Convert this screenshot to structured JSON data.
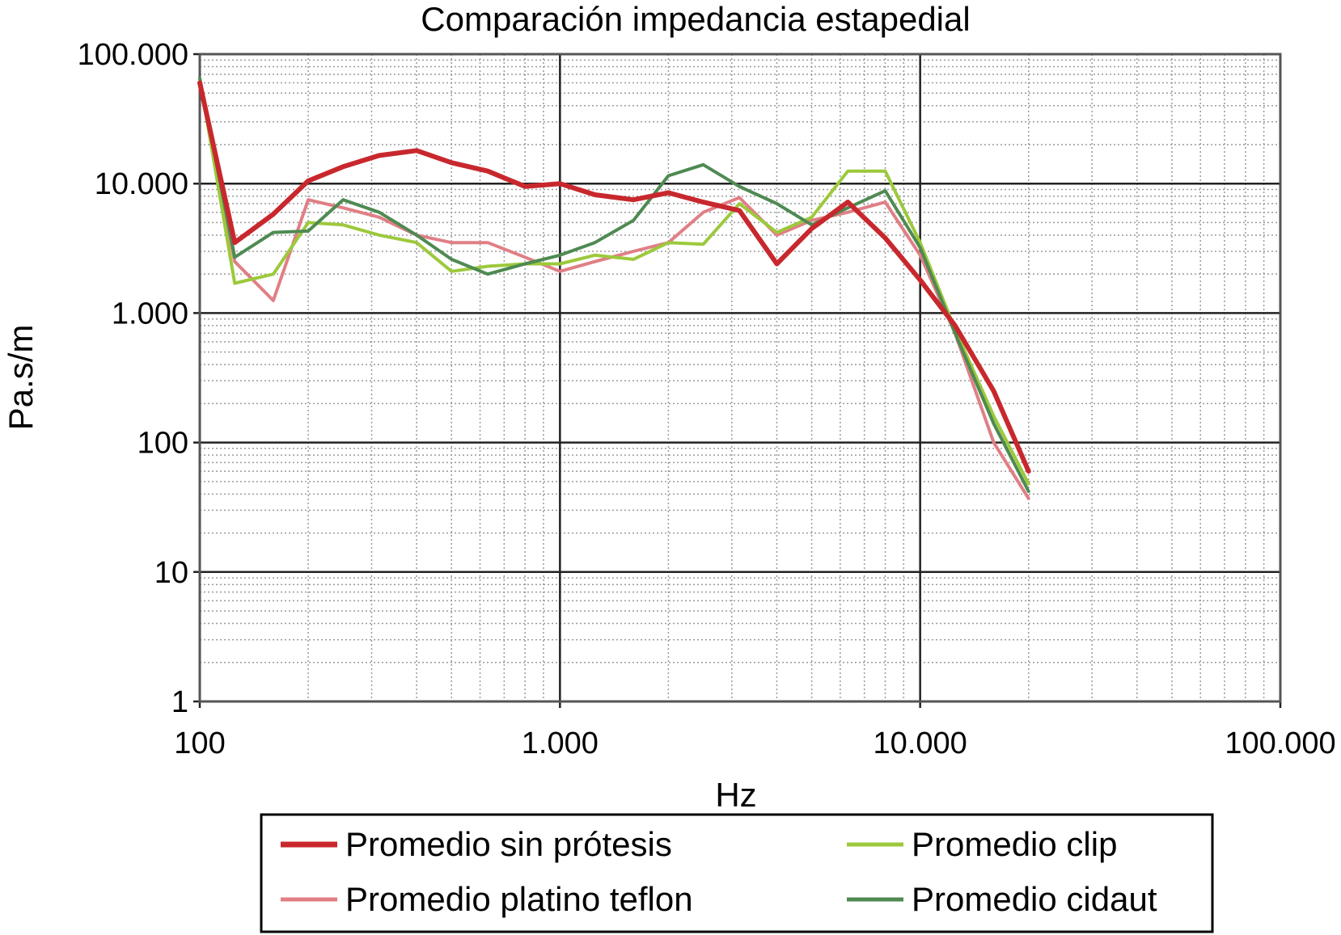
{
  "chart_data": {
    "type": "line",
    "title": "Comparación impedancia estapedial",
    "xlabel": "Hz",
    "ylabel": "Pa.s/m",
    "xscale": "log",
    "yscale": "log",
    "xlim": [
      100,
      100000
    ],
    "ylim": [
      1,
      100000
    ],
    "xticks": [
      {
        "value": 100,
        "label": "100"
      },
      {
        "value": 1000,
        "label": "1.000"
      },
      {
        "value": 10000,
        "label": "10.000"
      },
      {
        "value": 100000,
        "label": "100.000"
      }
    ],
    "yticks": [
      {
        "value": 1,
        "label": "1"
      },
      {
        "value": 10,
        "label": "10"
      },
      {
        "value": 100,
        "label": "100"
      },
      {
        "value": 1000,
        "label": "1.000"
      },
      {
        "value": 10000,
        "label": "10.000"
      },
      {
        "value": 100000,
        "label": "100.000"
      }
    ],
    "grid": true,
    "legend_position": "bottom",
    "series": [
      {
        "name": "Promedio sin prótesis",
        "color": "#c8282d",
        "x": [
          100,
          125,
          160,
          200,
          250,
          315,
          400,
          500,
          630,
          800,
          1000,
          1250,
          1600,
          2000,
          2500,
          3150,
          4000,
          5000,
          6300,
          8000,
          10000,
          12500,
          16000,
          20000
        ],
        "y": [
          60000,
          3500,
          5800,
          10500,
          13500,
          16500,
          18000,
          14500,
          12500,
          9500,
          10000,
          8200,
          7500,
          8500,
          7200,
          6200,
          2400,
          4500,
          7200,
          3800,
          1800,
          800,
          250,
          60
        ]
      },
      {
        "name": "Promedio platino teflon",
        "color": "#e07f85",
        "x": [
          100,
          125,
          160,
          200,
          250,
          315,
          400,
          500,
          630,
          800,
          1000,
          1250,
          1600,
          2000,
          2500,
          3150,
          4000,
          5000,
          6300,
          8000,
          10000,
          12500,
          16000,
          20000
        ],
        "y": [
          60000,
          2500,
          1250,
          7500,
          6500,
          5500,
          4000,
          3500,
          3500,
          2700,
          2100,
          2500,
          3000,
          3500,
          6000,
          7800,
          4000,
          5200,
          6000,
          7200,
          2800,
          700,
          100,
          37
        ]
      },
      {
        "name": "Promedio clip",
        "color": "#9cc93c",
        "x": [
          100,
          125,
          160,
          200,
          250,
          315,
          400,
          500,
          630,
          800,
          1000,
          1250,
          1600,
          2000,
          2500,
          3150,
          4000,
          5000,
          6300,
          8000,
          10000,
          12500,
          16000,
          20000
        ],
        "y": [
          65000,
          1700,
          2000,
          5000,
          4800,
          4000,
          3500,
          2100,
          2300,
          2400,
          2400,
          2800,
          2600,
          3500,
          3400,
          7000,
          4200,
          5500,
          12500,
          12500,
          3500,
          750,
          160,
          48
        ]
      },
      {
        "name": "Promedio cidaut",
        "color": "#4e8a52",
        "x": [
          100,
          125,
          160,
          200,
          250,
          315,
          400,
          500,
          630,
          800,
          1000,
          1250,
          1600,
          2000,
          2500,
          3150,
          4000,
          5000,
          6300,
          8000,
          10000,
          12500,
          16000,
          20000
        ],
        "y": [
          65000,
          2700,
          4200,
          4300,
          7500,
          6000,
          4000,
          2600,
          2000,
          2400,
          2800,
          3500,
          5200,
          11500,
          14000,
          9500,
          7000,
          4800,
          6500,
          8800,
          3200,
          700,
          140,
          42
        ]
      }
    ]
  }
}
